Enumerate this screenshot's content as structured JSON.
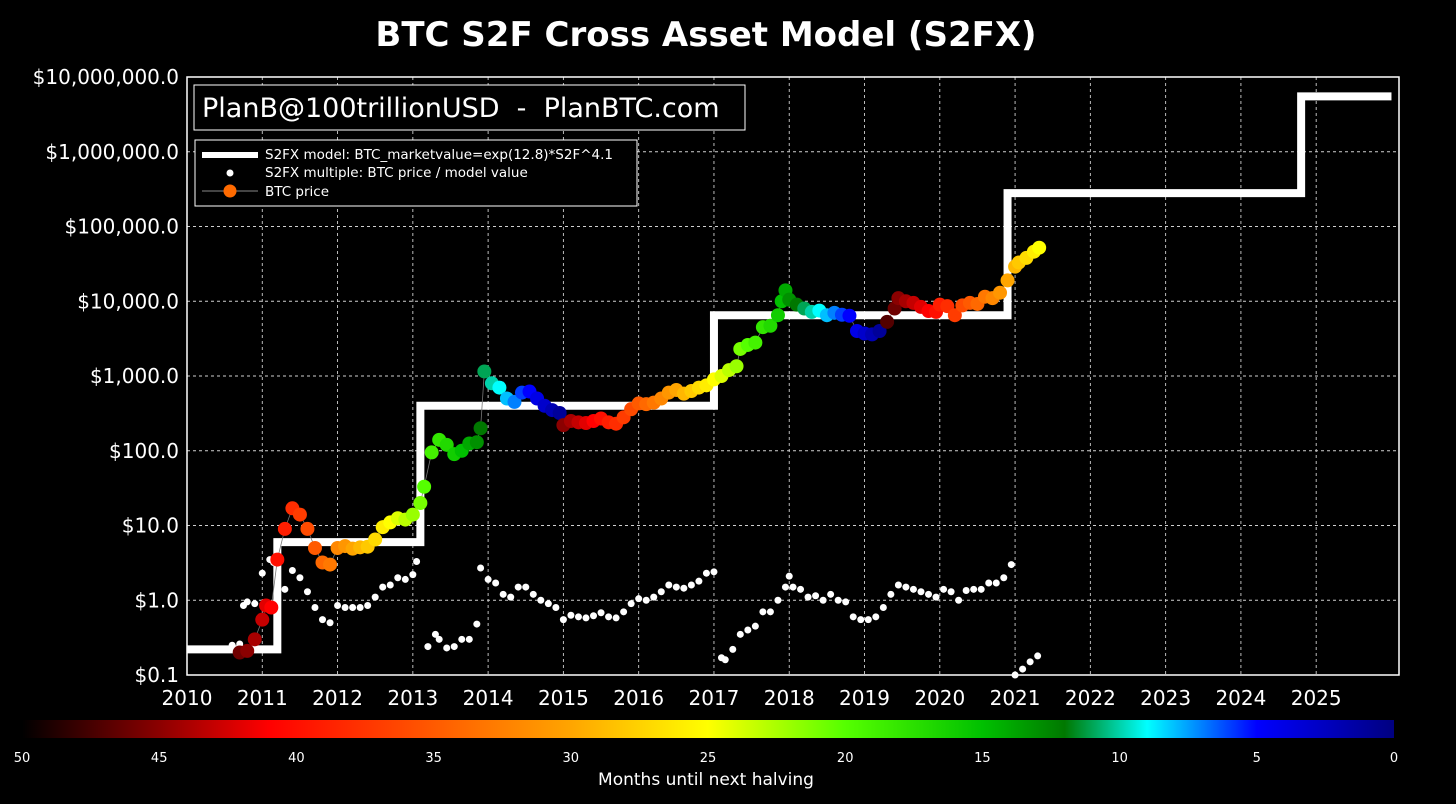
{
  "chart_data": {
    "type": "scatter",
    "title": "BTC S2F Cross Asset Model (S2FX)",
    "credit": "PlanB@100trillionUSD  -  PlanBTC.com",
    "x_ticks": [
      "2010",
      "2011",
      "2012",
      "2013",
      "2014",
      "2015",
      "2016",
      "2017",
      "2018",
      "2019",
      "2020",
      "2021",
      "2022",
      "2023",
      "2024",
      "2025"
    ],
    "xlim": [
      2010.0,
      2026.1
    ],
    "y_scale": "log",
    "ylim": [
      0.1,
      10000000
    ],
    "y_ticks": [
      {
        "value": 0.1,
        "label": "$0.1"
      },
      {
        "value": 1,
        "label": "$1.0"
      },
      {
        "value": 10,
        "label": "$10.0"
      },
      {
        "value": 100,
        "label": "$100.0"
      },
      {
        "value": 1000,
        "label": "$1,000.0"
      },
      {
        "value": 10000,
        "label": "$10,000.0"
      },
      {
        "value": 100000,
        "label": "$100,000.0"
      },
      {
        "value": 1000000,
        "label": "$1,000,000.0"
      },
      {
        "value": 10000000,
        "label": "$10,000,000.0"
      }
    ],
    "grid": true,
    "legend": {
      "position": "top-left",
      "entries": [
        "S2FX model: BTC_marketvalue=exp(12.8)*S2F^4.1",
        "S2FX multiple: BTC price / model value",
        "BTC price"
      ]
    },
    "colorbar": {
      "label": "Months until next halving",
      "ticks": [
        "50",
        "45",
        "40",
        "35",
        "30",
        "25",
        "20",
        "15",
        "10",
        "5",
        "0"
      ],
      "range": [
        50,
        0
      ]
    },
    "model_steps": [
      {
        "x0": 2010.0,
        "x1": 2011.2,
        "y": 0.22
      },
      {
        "x0": 2011.2,
        "x1": 2013.1,
        "y": 6.0
      },
      {
        "x0": 2013.1,
        "x1": 2017.0,
        "y": 400
      },
      {
        "x0": 2017.0,
        "x1": 2020.9,
        "y": 6500
      },
      {
        "x0": 2020.9,
        "x1": 2024.8,
        "y": 280000
      },
      {
        "x0": 2024.8,
        "x1": 2026.0,
        "y": 5500000
      }
    ],
    "btc_price": [
      [
        2010.7,
        0.2,
        46
      ],
      [
        2010.8,
        0.21,
        45
      ],
      [
        2010.9,
        0.3,
        44
      ],
      [
        2011.0,
        0.55,
        43
      ],
      [
        2011.05,
        0.85,
        42
      ],
      [
        2011.12,
        0.8,
        41
      ],
      [
        2011.2,
        3.5,
        40
      ],
      [
        2011.3,
        9,
        39
      ],
      [
        2011.4,
        17,
        38
      ],
      [
        2011.5,
        14,
        37
      ],
      [
        2011.6,
        9,
        36
      ],
      [
        2011.7,
        5,
        35
      ],
      [
        2011.8,
        3.2,
        34
      ],
      [
        2011.9,
        3.0,
        33
      ],
      [
        2012.0,
        5.0,
        32
      ],
      [
        2012.1,
        5.3,
        31
      ],
      [
        2012.2,
        4.9,
        30
      ],
      [
        2012.3,
        5.1,
        29
      ],
      [
        2012.4,
        5.2,
        28
      ],
      [
        2012.5,
        6.5,
        27
      ],
      [
        2012.6,
        9.5,
        26
      ],
      [
        2012.7,
        11,
        25
      ],
      [
        2012.8,
        12.5,
        24
      ],
      [
        2012.9,
        12,
        23
      ],
      [
        2013.0,
        14,
        22
      ],
      [
        2013.1,
        20,
        21
      ],
      [
        2013.15,
        33,
        20
      ],
      [
        2013.25,
        95,
        19
      ],
      [
        2013.35,
        140,
        18
      ],
      [
        2013.45,
        120,
        17
      ],
      [
        2013.55,
        90,
        16
      ],
      [
        2013.65,
        100,
        15
      ],
      [
        2013.75,
        125,
        14
      ],
      [
        2013.85,
        130,
        13
      ],
      [
        2013.9,
        200,
        12
      ],
      [
        2013.95,
        1150,
        11
      ],
      [
        2014.05,
        800,
        10
      ],
      [
        2014.15,
        700,
        9
      ],
      [
        2014.25,
        500,
        8
      ],
      [
        2014.35,
        450,
        7
      ],
      [
        2014.45,
        600,
        6
      ],
      [
        2014.55,
        620,
        5
      ],
      [
        2014.65,
        500,
        4
      ],
      [
        2014.75,
        400,
        3
      ],
      [
        2014.85,
        350,
        2
      ],
      [
        2014.95,
        320,
        1
      ],
      [
        2015.0,
        220,
        45
      ],
      [
        2015.1,
        250,
        44
      ],
      [
        2015.2,
        240,
        43
      ],
      [
        2015.3,
        235,
        42
      ],
      [
        2015.4,
        250,
        41
      ],
      [
        2015.5,
        270,
        40
      ],
      [
        2015.6,
        240,
        39
      ],
      [
        2015.7,
        230,
        38
      ],
      [
        2015.8,
        280,
        37
      ],
      [
        2015.9,
        360,
        36
      ],
      [
        2016.0,
        430,
        35
      ],
      [
        2016.1,
        420,
        34
      ],
      [
        2016.2,
        440,
        33
      ],
      [
        2016.3,
        500,
        32
      ],
      [
        2016.4,
        600,
        31
      ],
      [
        2016.5,
        650,
        30
      ],
      [
        2016.6,
        580,
        29
      ],
      [
        2016.7,
        630,
        28
      ],
      [
        2016.8,
        700,
        27
      ],
      [
        2016.9,
        750,
        26
      ],
      [
        2017.0,
        900,
        25
      ],
      [
        2017.1,
        1000,
        24
      ],
      [
        2017.2,
        1200,
        23
      ],
      [
        2017.3,
        1350,
        22
      ],
      [
        2017.35,
        2300,
        21
      ],
      [
        2017.45,
        2600,
        20
      ],
      [
        2017.55,
        2800,
        19
      ],
      [
        2017.65,
        4500,
        18
      ],
      [
        2017.75,
        4700,
        17
      ],
      [
        2017.85,
        6500,
        16
      ],
      [
        2017.9,
        10000,
        15
      ],
      [
        2017.95,
        14000,
        14
      ],
      [
        2018.0,
        10500,
        13
      ],
      [
        2018.1,
        9000,
        12
      ],
      [
        2018.2,
        8000,
        11
      ],
      [
        2018.3,
        7200,
        10
      ],
      [
        2018.4,
        7500,
        9
      ],
      [
        2018.5,
        6500,
        8
      ],
      [
        2018.6,
        7000,
        7
      ],
      [
        2018.7,
        6600,
        6
      ],
      [
        2018.8,
        6400,
        5
      ],
      [
        2018.9,
        4000,
        4
      ],
      [
        2019.0,
        3700,
        3
      ],
      [
        2019.1,
        3600,
        2
      ],
      [
        2019.2,
        4000,
        1
      ],
      [
        2019.3,
        5300,
        47
      ],
      [
        2019.4,
        8000,
        46
      ],
      [
        2019.45,
        11000,
        45
      ],
      [
        2019.55,
        10000,
        44
      ],
      [
        2019.65,
        9500,
        43
      ],
      [
        2019.75,
        8400,
        42
      ],
      [
        2019.85,
        7400,
        41
      ],
      [
        2019.95,
        7200,
        40
      ],
      [
        2020.0,
        9000,
        39
      ],
      [
        2020.1,
        8600,
        38
      ],
      [
        2020.2,
        6500,
        37
      ],
      [
        2020.3,
        8800,
        36
      ],
      [
        2020.4,
        9500,
        35
      ],
      [
        2020.5,
        9200,
        34
      ],
      [
        2020.6,
        11500,
        33
      ],
      [
        2020.7,
        11000,
        32
      ],
      [
        2020.8,
        13000,
        31
      ],
      [
        2020.9,
        19000,
        30
      ],
      [
        2021.0,
        29000,
        29
      ],
      [
        2021.05,
        33000,
        28
      ],
      [
        2021.15,
        38000,
        27
      ],
      [
        2021.25,
        46000,
        26
      ],
      [
        2021.32,
        52000,
        25
      ]
    ],
    "s2fx_multiple": [
      [
        2010.6,
        0.25
      ],
      [
        2010.7,
        0.26
      ],
      [
        2010.75,
        0.85
      ],
      [
        2010.8,
        0.95
      ],
      [
        2010.9,
        0.9
      ],
      [
        2011.0,
        2.3
      ],
      [
        2011.1,
        3.5
      ],
      [
        2011.15,
        3.2
      ],
      [
        2011.2,
        0.55
      ],
      [
        2011.3,
        1.4
      ],
      [
        2011.4,
        2.5
      ],
      [
        2011.5,
        2.0
      ],
      [
        2011.6,
        1.3
      ],
      [
        2011.7,
        0.8
      ],
      [
        2011.8,
        0.55
      ],
      [
        2011.9,
        0.5
      ],
      [
        2012.0,
        0.85
      ],
      [
        2012.1,
        0.8
      ],
      [
        2012.2,
        0.8
      ],
      [
        2012.3,
        0.8
      ],
      [
        2012.4,
        0.85
      ],
      [
        2012.5,
        1.1
      ],
      [
        2012.6,
        1.5
      ],
      [
        2012.7,
        1.6
      ],
      [
        2012.8,
        2.0
      ],
      [
        2012.9,
        1.9
      ],
      [
        2013.0,
        2.2
      ],
      [
        2013.05,
        3.3
      ],
      [
        2013.2,
        0.24
      ],
      [
        2013.3,
        0.35
      ],
      [
        2013.35,
        0.3
      ],
      [
        2013.45,
        0.23
      ],
      [
        2013.55,
        0.24
      ],
      [
        2013.65,
        0.3
      ],
      [
        2013.75,
        0.3
      ],
      [
        2013.85,
        0.48
      ],
      [
        2013.9,
        2.7
      ],
      [
        2014.0,
        1.9
      ],
      [
        2014.1,
        1.7
      ],
      [
        2014.2,
        1.2
      ],
      [
        2014.3,
        1.1
      ],
      [
        2014.4,
        1.5
      ],
      [
        2014.5,
        1.5
      ],
      [
        2014.6,
        1.2
      ],
      [
        2014.7,
        1.0
      ],
      [
        2014.8,
        0.9
      ],
      [
        2014.9,
        0.8
      ],
      [
        2015.0,
        0.55
      ],
      [
        2015.1,
        0.63
      ],
      [
        2015.2,
        0.6
      ],
      [
        2015.3,
        0.58
      ],
      [
        2015.4,
        0.62
      ],
      [
        2015.5,
        0.68
      ],
      [
        2015.6,
        0.6
      ],
      [
        2015.7,
        0.58
      ],
      [
        2015.8,
        0.7
      ],
      [
        2015.9,
        0.9
      ],
      [
        2016.0,
        1.05
      ],
      [
        2016.1,
        1.0
      ],
      [
        2016.2,
        1.1
      ],
      [
        2016.3,
        1.3
      ],
      [
        2016.4,
        1.6
      ],
      [
        2016.5,
        1.5
      ],
      [
        2016.6,
        1.45
      ],
      [
        2016.7,
        1.6
      ],
      [
        2016.8,
        1.8
      ],
      [
        2016.9,
        2.3
      ],
      [
        2017.0,
        2.4
      ],
      [
        2017.1,
        0.17
      ],
      [
        2017.15,
        0.16
      ],
      [
        2017.25,
        0.22
      ],
      [
        2017.35,
        0.35
      ],
      [
        2017.45,
        0.4
      ],
      [
        2017.55,
        0.45
      ],
      [
        2017.65,
        0.7
      ],
      [
        2017.75,
        0.7
      ],
      [
        2017.85,
        1.0
      ],
      [
        2017.95,
        1.5
      ],
      [
        2018.0,
        2.1
      ],
      [
        2018.05,
        1.5
      ],
      [
        2018.15,
        1.4
      ],
      [
        2018.25,
        1.1
      ],
      [
        2018.35,
        1.15
      ],
      [
        2018.45,
        1.0
      ],
      [
        2018.55,
        1.2
      ],
      [
        2018.65,
        1.0
      ],
      [
        2018.75,
        0.95
      ],
      [
        2018.85,
        0.6
      ],
      [
        2018.95,
        0.55
      ],
      [
        2019.05,
        0.55
      ],
      [
        2019.15,
        0.6
      ],
      [
        2019.25,
        0.8
      ],
      [
        2019.35,
        1.2
      ],
      [
        2019.45,
        1.6
      ],
      [
        2019.55,
        1.5
      ],
      [
        2019.65,
        1.4
      ],
      [
        2019.75,
        1.3
      ],
      [
        2019.85,
        1.2
      ],
      [
        2019.95,
        1.1
      ],
      [
        2020.05,
        1.4
      ],
      [
        2020.15,
        1.3
      ],
      [
        2020.25,
        1.0
      ],
      [
        2020.35,
        1.35
      ],
      [
        2020.45,
        1.4
      ],
      [
        2020.55,
        1.4
      ],
      [
        2020.65,
        1.7
      ],
      [
        2020.75,
        1.7
      ],
      [
        2020.85,
        2.0
      ],
      [
        2020.95,
        3.0
      ],
      [
        2021.0,
        0.1
      ],
      [
        2021.1,
        0.12
      ],
      [
        2021.2,
        0.15
      ],
      [
        2021.3,
        0.18
      ]
    ]
  }
}
